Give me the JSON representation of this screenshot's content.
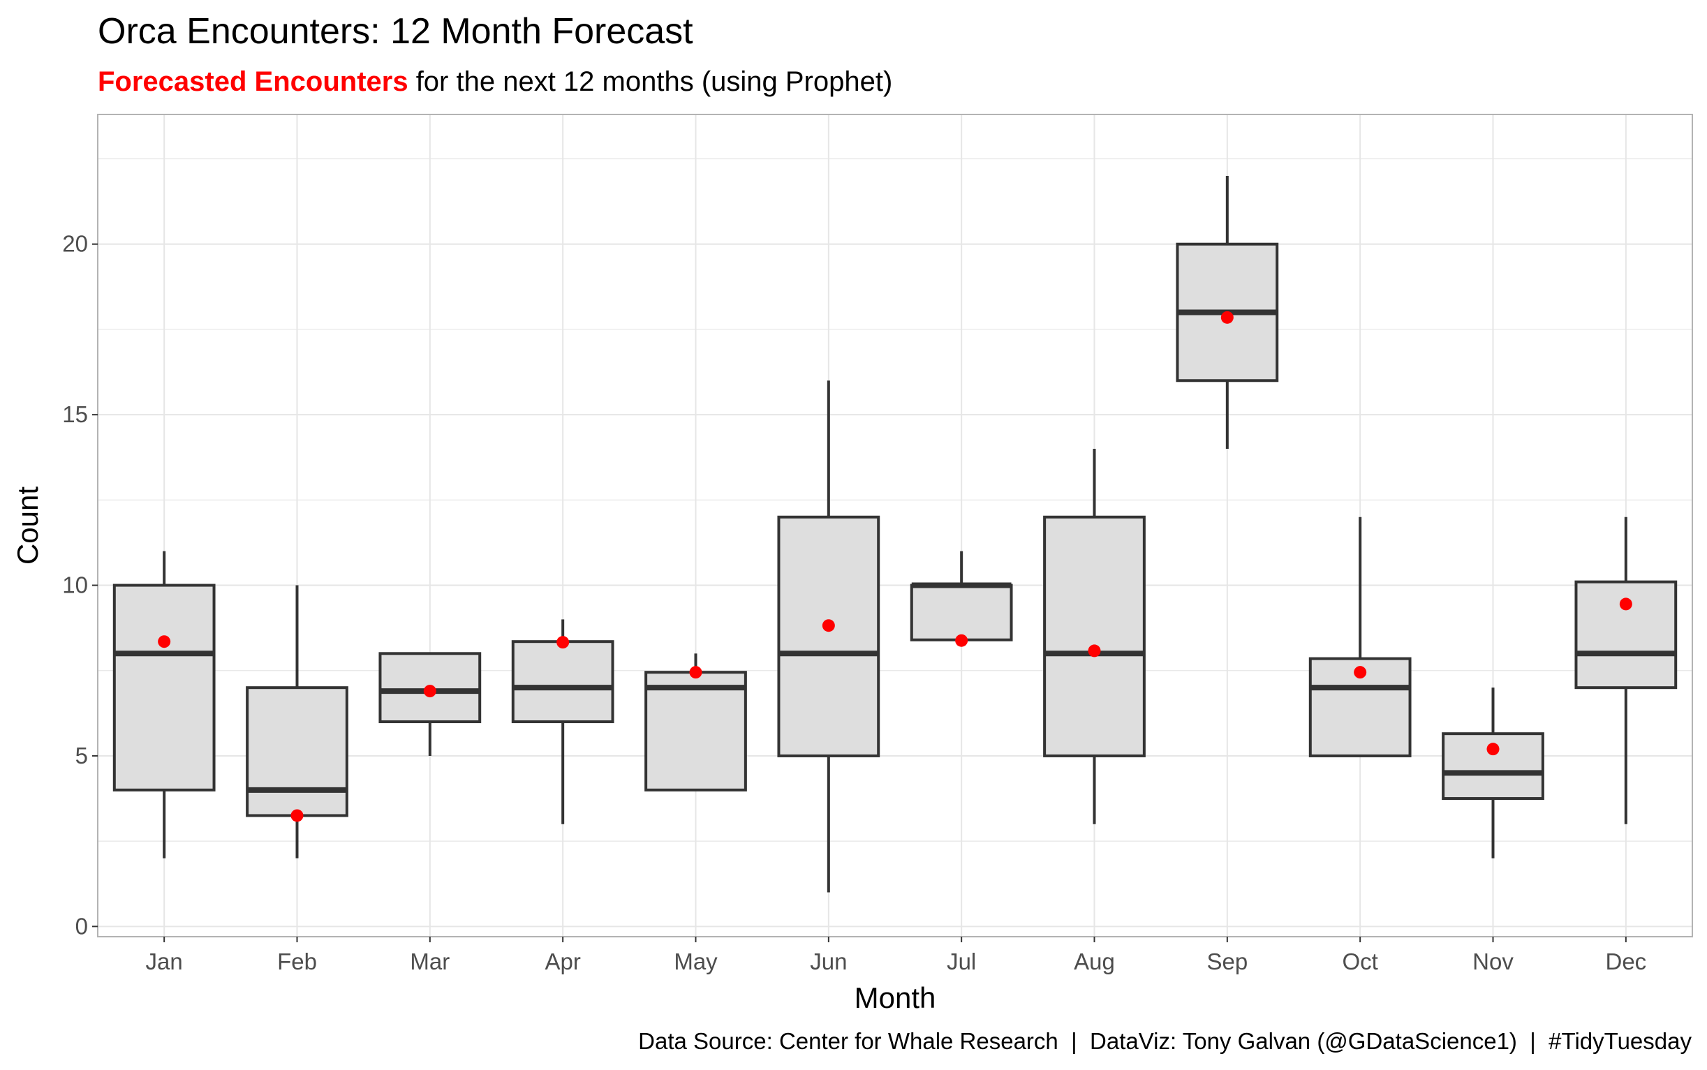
{
  "colors": {
    "highlight": "#ff0000",
    "box_fill": "#dedede",
    "box_stroke": "#333333",
    "grid": "#e6e6e6",
    "panel_border": "#b3b3b3"
  },
  "chart_data": {
    "type": "boxplot",
    "title": "Orca Encounters: 12 Month Forecast",
    "subtitle_highlight": "Forecasted Encounters",
    "subtitle_rest": " for the next 12 months (using Prophet)",
    "xlabel": "Month",
    "ylabel": "Count",
    "caption": "Data Source: Center for Whale Research  |  DataViz: Tony Galvan (@GDataScience1)  |  #TidyTuesday",
    "ylim": [
      -0.3,
      23.8
    ],
    "yticks": [
      0,
      5,
      10,
      15,
      20
    ],
    "grid": true,
    "categories": [
      "Jan",
      "Feb",
      "Mar",
      "Apr",
      "May",
      "Jun",
      "Jul",
      "Aug",
      "Sep",
      "Oct",
      "Nov",
      "Dec"
    ],
    "boxes": [
      {
        "min": 2,
        "q1": 4,
        "median": 8,
        "q3": 10,
        "max": 11
      },
      {
        "min": 2,
        "q1": 3.25,
        "median": 4,
        "q3": 7,
        "max": 10
      },
      {
        "min": 5,
        "q1": 6,
        "median": 6.9,
        "q3": 8,
        "max": 8
      },
      {
        "min": 3,
        "q1": 6,
        "median": 7,
        "q3": 8.35,
        "max": 9
      },
      {
        "min": 4,
        "q1": 4,
        "median": 7,
        "q3": 7.45,
        "max": 8
      },
      {
        "min": 1,
        "q1": 5,
        "median": 8,
        "q3": 12,
        "max": 16
      },
      {
        "min": 8.4,
        "q1": 8.4,
        "median": 10,
        "q3": 10,
        "max": 11
      },
      {
        "min": 3,
        "q1": 5,
        "median": 8,
        "q3": 12,
        "max": 14
      },
      {
        "min": 14,
        "q1": 16,
        "median": 18,
        "q3": 20,
        "max": 22
      },
      {
        "min": 5,
        "q1": 5,
        "median": 7,
        "q3": 7.85,
        "max": 12
      },
      {
        "min": 2,
        "q1": 3.75,
        "median": 4.5,
        "q3": 5.65,
        "max": 7
      },
      {
        "min": 3,
        "q1": 7,
        "median": 8,
        "q3": 10.1,
        "max": 12
      }
    ],
    "forecast": [
      8.35,
      3.25,
      6.9,
      8.33,
      7.45,
      8.82,
      8.38,
      8.08,
      17.85,
      7.45,
      5.2,
      9.45
    ]
  }
}
